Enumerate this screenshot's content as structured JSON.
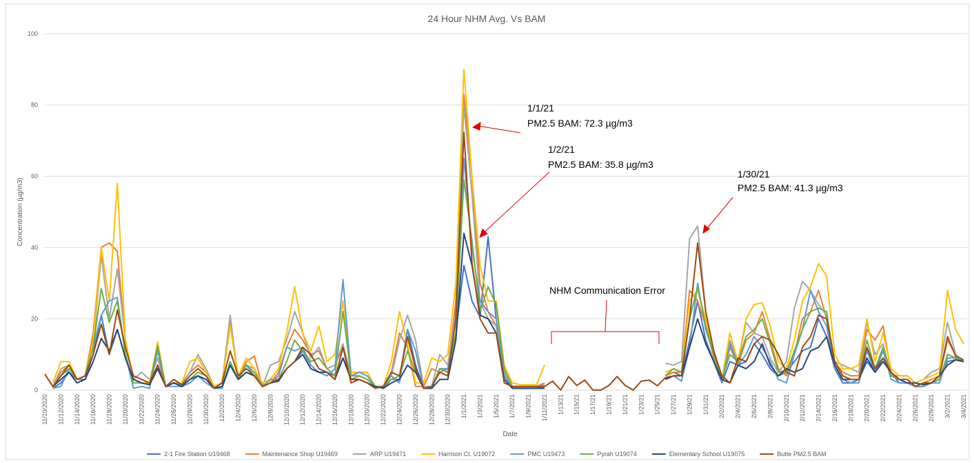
{
  "chart_data": {
    "type": "line",
    "title": "24 Hour NHM Avg. Vs BAM",
    "x_label": "Date",
    "y_label": "Concentration (µg/m3)",
    "ylim": [
      0,
      100
    ],
    "yticks": [
      0,
      20,
      40,
      60,
      80,
      100
    ],
    "grid": true,
    "legend": "bottom",
    "categories": [
      "11/10/2020",
      null,
      "11/12/2020",
      null,
      "11/14/2020",
      null,
      "11/16/2020",
      null,
      "11/18/2020",
      null,
      "11/20/2020",
      null,
      "11/22/2020",
      null,
      "11/24/2020",
      null,
      "11/26/2020",
      null,
      "11/28/2020",
      null,
      "11/30/2020",
      null,
      "12/2/2020",
      null,
      "12/4/2020",
      null,
      "12/6/2020",
      null,
      "12/8/2020",
      null,
      "12/10/2020",
      null,
      "12/12/2020",
      null,
      "12/14/2020",
      null,
      "12/16/2020",
      null,
      "12/18/2020",
      null,
      "12/20/2020",
      null,
      "12/22/2020",
      null,
      "12/24/2020",
      null,
      "12/26/2020",
      null,
      "12/28/2020",
      null,
      "12/30/2020",
      null,
      "1/1/2021",
      null,
      "1/3/2021",
      null,
      "1/5/2021",
      null,
      "1/7/2021",
      null,
      "1/9/2021",
      null,
      "1/11/2021",
      null,
      "1/13/21",
      null,
      "1/15/21",
      null,
      "1/17/21",
      null,
      "1/19/21",
      null,
      "1/21/21",
      null,
      "1/23/21",
      null,
      "1/25/21",
      null,
      "1/27/21",
      null,
      "1/29/21",
      null,
      "1/31/21",
      null,
      "2/2/2021",
      null,
      "2/4/2021",
      null,
      "2/6/2021",
      null,
      "2/8/2021",
      null,
      "2/10/2021",
      null,
      "2/12/2021",
      null,
      "2/14/2021",
      null,
      "2/16/2021",
      null,
      "2/18/2021",
      null,
      "2/20/2021",
      null,
      "2/22/2021",
      null,
      "2/24/2021",
      null,
      "2/26/2021",
      null,
      "2/28/2021",
      null,
      "3/2/2021",
      null,
      "3/4/2021"
    ],
    "series": [
      {
        "name": "2-1 Fire Station U19468",
        "color": "#4472c4",
        "values": [
          null,
          0.5,
          2,
          5,
          3,
          3,
          10,
          21,
          10,
          17,
          9,
          3,
          2,
          1.5,
          7,
          1,
          2,
          1,
          2,
          4,
          3,
          0.5,
          1,
          7,
          3,
          5,
          4,
          1,
          2,
          2.5,
          6,
          8,
          11,
          7,
          5,
          5,
          4,
          9,
          3,
          3,
          2,
          1,
          0.5,
          3,
          3,
          17,
          7,
          0.5,
          0.5,
          6,
          5,
          16,
          35,
          25,
          20.5,
          43,
          20,
          4,
          0.5,
          0.5,
          0.5,
          0.5,
          0.5,
          null,
          null,
          null,
          null,
          null,
          null,
          null,
          null,
          null,
          null,
          null,
          null,
          null,
          null,
          4,
          5,
          4,
          14,
          25,
          14,
          8,
          2,
          8,
          7,
          8,
          13,
          10,
          6,
          4,
          5,
          8,
          11,
          12,
          20,
          15,
          6,
          2,
          2,
          3,
          8,
          5,
          9,
          5,
          2,
          2,
          1,
          1,
          2,
          3,
          8,
          8.5,
          8
        ]
      },
      {
        "name": "Maintenance Shop U19469",
        "color": "#ed7d31",
        "values": [
          null,
          1,
          5,
          7,
          3,
          4,
          16,
          40,
          41.3,
          39,
          14,
          3,
          2,
          2,
          12,
          1,
          2,
          2,
          5,
          7,
          5,
          1,
          2,
          19,
          3,
          8,
          9.5,
          1,
          2,
          5,
          12,
          17,
          14,
          10,
          11,
          6,
          7,
          12,
          3,
          4,
          3,
          1,
          1,
          5,
          16,
          12,
          1,
          1,
          6,
          5,
          6,
          25,
          83,
          60,
          30,
          22,
          18,
          5,
          1,
          1,
          1,
          1,
          2,
          null,
          null,
          null,
          null,
          null,
          null,
          null,
          null,
          null,
          null,
          null,
          null,
          null,
          null,
          4,
          5,
          5,
          28,
          25,
          18,
          9,
          3,
          12,
          7,
          14,
          16,
          22,
          14,
          6,
          4,
          10,
          20,
          22,
          28,
          20,
          8,
          5,
          4,
          4,
          17,
          14,
          18,
          5,
          3,
          3,
          1,
          2,
          3,
          4,
          14,
          10,
          8
        ]
      },
      {
        "name": "ARP U19471",
        "color": "#a5a5a5",
        "values": [
          null,
          1,
          6,
          7,
          3,
          4,
          12,
          38,
          20,
          34,
          14,
          3,
          5,
          3,
          9,
          1,
          2,
          2,
          5,
          10,
          6,
          1,
          2,
          21,
          3,
          7,
          6,
          1,
          7,
          8,
          14,
          22,
          16,
          9,
          12,
          6,
          7,
          13,
          4,
          5,
          5,
          1,
          1,
          4,
          14,
          21,
          14,
          1,
          1,
          10,
          7,
          22,
          80,
          55,
          25,
          20,
          18,
          5,
          1,
          1,
          1,
          1,
          1.5,
          null,
          null,
          null,
          null,
          null,
          null,
          null,
          null,
          null,
          null,
          null,
          null,
          null,
          null,
          7.5,
          7,
          8,
          42.5,
          46,
          22,
          10,
          3,
          14,
          8,
          19,
          16,
          15,
          9,
          5,
          8,
          23,
          30.5,
          28,
          24,
          21,
          8,
          7,
          6,
          5,
          19,
          10,
          13,
          4,
          4,
          4,
          2,
          3,
          5,
          6,
          19,
          10,
          8
        ]
      },
      {
        "name": "Harrison Ct. U19072",
        "color": "#ffc000",
        "values": [
          null,
          2,
          8,
          8,
          3,
          4,
          14,
          40,
          25,
          58,
          14,
          3,
          2,
          2,
          13.5,
          1,
          2,
          2,
          8,
          9,
          5,
          1,
          2,
          18,
          4,
          9,
          6,
          2,
          3,
          6,
          16,
          29,
          16,
          11,
          18,
          8,
          10,
          25,
          5,
          5,
          5,
          1,
          1,
          8,
          22,
          13,
          2,
          2,
          9,
          8,
          10,
          30,
          90,
          60,
          35,
          25,
          25,
          7,
          2,
          1.5,
          1.5,
          1.5,
          7,
          null,
          null,
          null,
          null,
          null,
          null,
          null,
          null,
          null,
          null,
          null,
          null,
          null,
          null,
          5,
          6,
          5,
          25,
          28,
          20,
          10,
          3,
          16,
          8,
          20,
          24,
          24.5,
          18,
          8,
          6,
          14,
          25,
          29,
          35.5,
          32,
          10,
          6,
          6,
          7,
          20,
          8,
          16,
          6,
          4,
          4,
          2,
          3,
          4,
          5,
          28,
          17,
          13
        ]
      },
      {
        "name": "PMC U19473",
        "color": "#5b9bd5",
        "values": [
          null,
          0.5,
          1,
          6,
          3,
          4,
          12,
          21,
          25,
          26,
          10,
          0.5,
          1,
          0.5,
          11,
          1,
          1,
          1,
          2,
          4,
          2,
          0.5,
          0.5,
          7,
          3,
          7,
          4,
          1,
          2,
          4,
          12,
          11,
          12,
          7,
          5,
          4,
          6,
          31,
          4,
          5,
          4,
          1,
          1,
          4,
          2,
          17,
          11,
          0.5,
          0.5,
          6,
          6,
          15,
          65,
          40,
          25,
          22,
          20,
          4,
          0.5,
          0.5,
          0.5,
          0.5,
          1,
          null,
          null,
          null,
          null,
          null,
          null,
          null,
          null,
          null,
          null,
          null,
          null,
          null,
          null,
          3,
          4,
          2.5,
          12,
          30,
          17,
          10,
          2,
          13,
          7,
          10,
          15,
          12,
          8,
          3,
          2,
          10,
          17,
          28,
          22,
          18,
          6,
          3,
          2,
          2,
          11,
          5,
          11,
          3,
          2,
          2,
          1,
          1,
          2,
          2,
          9,
          9,
          8
        ]
      },
      {
        "name": "Pyrah U19074",
        "color": "#70ad47",
        "values": [
          null,
          0.5,
          4,
          6,
          3,
          4,
          12,
          28.5,
          19,
          25,
          10,
          2,
          2,
          1.5,
          12.5,
          1,
          2,
          1.5,
          3,
          5,
          4,
          0.5,
          1,
          8,
          3,
          7,
          5,
          1,
          3,
          3,
          8,
          14,
          11,
          8,
          9,
          6,
          4,
          22,
          4,
          4,
          3,
          1,
          1,
          3,
          4,
          11,
          5,
          0.5,
          1,
          6,
          5,
          16,
          59,
          42,
          22,
          29,
          24,
          6,
          1,
          1,
          1,
          1,
          1,
          null,
          null,
          null,
          null,
          null,
          null,
          null,
          null,
          null,
          null,
          null,
          null,
          null,
          null,
          4,
          6,
          5,
          20,
          29,
          18,
          10,
          3,
          10,
          8,
          15,
          17,
          20,
          13,
          5,
          5,
          11,
          17,
          22,
          23,
          22,
          7,
          3,
          3,
          3,
          14,
          6,
          12,
          4,
          3,
          3,
          1,
          2,
          2,
          3,
          10,
          9,
          8
        ]
      },
      {
        "name": "Elementary School U19075",
        "color": "#264478",
        "values": [
          null,
          1,
          3,
          5,
          2,
          3,
          8,
          14.5,
          11,
          17,
          9,
          3,
          2,
          1.5,
          6,
          1,
          2,
          1,
          3,
          4,
          3,
          0.5,
          1,
          7,
          3,
          5,
          4,
          1,
          2,
          2.5,
          6,
          8,
          10,
          6,
          5,
          5,
          3,
          9,
          3,
          3,
          2,
          1,
          0.5,
          2,
          3,
          7,
          5,
          0.5,
          0.5,
          3,
          3,
          14,
          44,
          35,
          21,
          20,
          16,
          3,
          0.5,
          0.5,
          0.5,
          0.5,
          0.5,
          null,
          null,
          null,
          null,
          null,
          null,
          null,
          null,
          null,
          null,
          null,
          null,
          null,
          null,
          3,
          4,
          4,
          12,
          20,
          13,
          8,
          3,
          2,
          7,
          6,
          8,
          13,
          7,
          4,
          6,
          5,
          6,
          11,
          12,
          15,
          7,
          3,
          3,
          3,
          9,
          5,
          8,
          5,
          3,
          2,
          2,
          1.5,
          2,
          4,
          7,
          8.5,
          8
        ]
      },
      {
        "name": "Butte PM2.5 BAM",
        "color": "#9e480e",
        "values": [
          4.5,
          1,
          4,
          7,
          3,
          4,
          10,
          18.5,
          10,
          22.5,
          12,
          4,
          3,
          2,
          7,
          1,
          3,
          1.5,
          4,
          6,
          4,
          0.5,
          2,
          11,
          4,
          6,
          4,
          1,
          2,
          3,
          6,
          8,
          12,
          10,
          6,
          5,
          3,
          12,
          2,
          3,
          2,
          0.5,
          1,
          5,
          4,
          15,
          6,
          0.5,
          1,
          5,
          4,
          20,
          72.3,
          35.8,
          20,
          16,
          16,
          2,
          1,
          1,
          1,
          1,
          1,
          2.5,
          0,
          3.8,
          1.3,
          2.8,
          0,
          0,
          1.3,
          3.8,
          1.3,
          0,
          2.5,
          2.8,
          1.2,
          3.5,
          4,
          4,
          20,
          41.3,
          22,
          11,
          4,
          2,
          9,
          8,
          13,
          15,
          14,
          10,
          5,
          4,
          12,
          15,
          21,
          20,
          8,
          4,
          3,
          3,
          12,
          6,
          9,
          5,
          3,
          3,
          1,
          2,
          2,
          4,
          15,
          9.5,
          8.5
        ]
      }
    ],
    "annotations": [
      {
        "lines": [
          "1/1/21",
          "PM2.5 BAM: 72.3 µg/m3"
        ]
      },
      {
        "lines": [
          "1/2/21",
          "PM2.5 BAM: 35.8 µg/m3"
        ]
      },
      {
        "lines": [
          "1/30/21",
          "PM2.5 BAM: 41.3 µg/m3"
        ]
      },
      {
        "lines": [
          "NHM Communication Error"
        ]
      }
    ]
  }
}
